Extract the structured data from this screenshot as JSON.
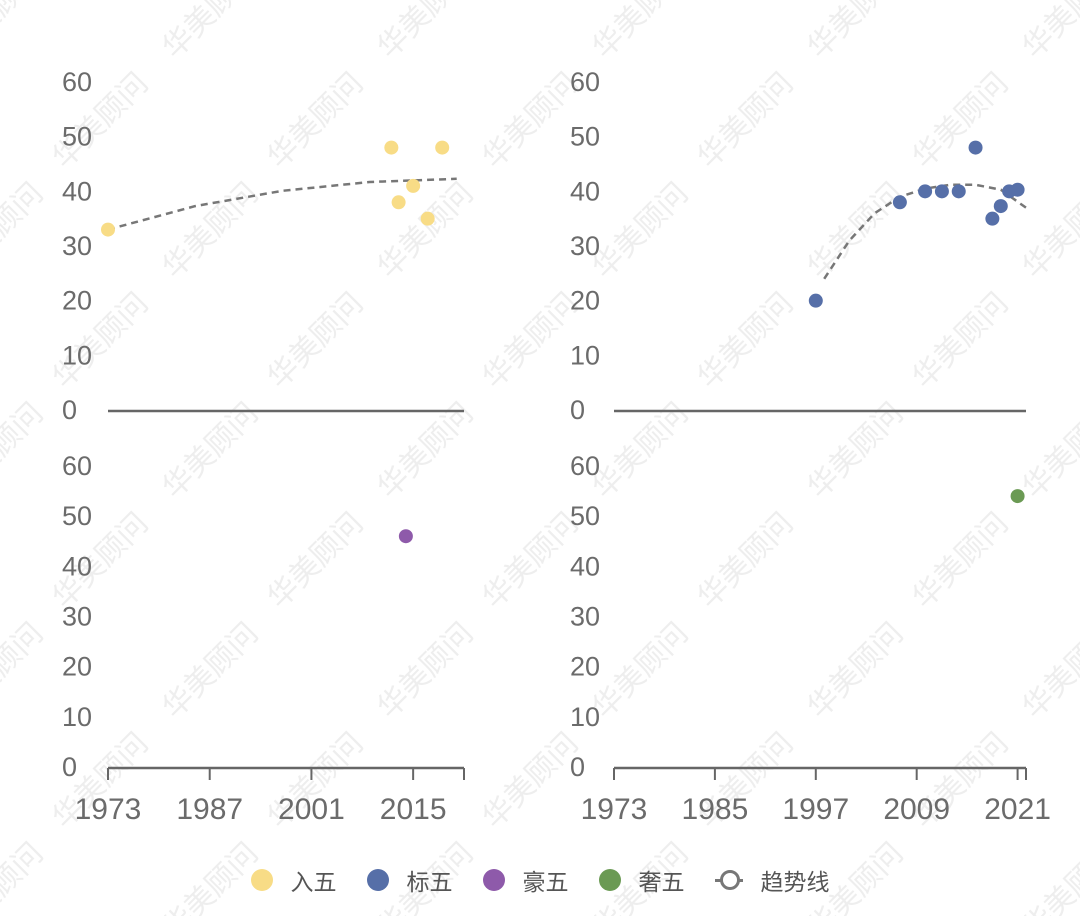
{
  "watermark": "华美顾问",
  "legend": [
    {
      "label": "入五",
      "color": "#f8dc86",
      "kind": "dot"
    },
    {
      "label": "标五",
      "color": "#566fa8",
      "kind": "dot"
    },
    {
      "label": "豪五",
      "color": "#8e5aaa",
      "kind": "dot"
    },
    {
      "label": "奢五",
      "color": "#6b9a54",
      "kind": "dot"
    },
    {
      "label": "趋势线",
      "color": "#777777",
      "kind": "trend"
    }
  ],
  "chart_data": [
    {
      "type": "scatter",
      "panel": "top-left",
      "series_name": "入五",
      "color": "#f8dc86",
      "x_range": [
        1973,
        2022
      ],
      "ylim": [
        0,
        60
      ],
      "y_ticks": [
        0,
        10,
        20,
        30,
        40,
        50,
        60
      ],
      "points": [
        [
          1973,
          33
        ],
        [
          2012,
          48
        ],
        [
          2013,
          38
        ],
        [
          2015,
          41
        ],
        [
          2017,
          35
        ],
        [
          2019,
          48
        ]
      ],
      "trendline": [
        [
          1973,
          33
        ],
        [
          1985,
          37.3
        ],
        [
          1997,
          40.1
        ],
        [
          2009,
          41.7
        ],
        [
          2021,
          42.3
        ]
      ]
    },
    {
      "type": "scatter",
      "panel": "top-right",
      "series_name": "标五",
      "color": "#566fa8",
      "x_range": [
        1973,
        2022
      ],
      "ylim": [
        0,
        60
      ],
      "y_ticks": [
        0,
        10,
        20,
        30,
        40,
        50,
        60
      ],
      "points": [
        [
          1997,
          20
        ],
        [
          2007,
          38
        ],
        [
          2010,
          40
        ],
        [
          2012,
          40
        ],
        [
          2014,
          40
        ],
        [
          2016,
          48
        ],
        [
          2018,
          35
        ],
        [
          2019,
          37.3
        ],
        [
          2020,
          40
        ],
        [
          2021,
          40.3
        ]
      ],
      "trendline": [
        [
          1998,
          24
        ],
        [
          2001,
          31
        ],
        [
          2004,
          36
        ],
        [
          2007,
          39
        ],
        [
          2010,
          40.5
        ],
        [
          2013,
          41.2
        ],
        [
          2016,
          41.2
        ],
        [
          2019,
          40.3
        ],
        [
          2022,
          37
        ]
      ]
    },
    {
      "type": "scatter",
      "panel": "bottom-left",
      "series_name": "豪五",
      "color": "#8e5aaa",
      "x_range": [
        1973,
        2022
      ],
      "x_ticks": [
        1973,
        1987,
        2001,
        2015
      ],
      "ylim": [
        0,
        60
      ],
      "y_ticks": [
        0,
        10,
        20,
        30,
        40,
        50,
        60
      ],
      "points": [
        [
          2014,
          46
        ]
      ]
    },
    {
      "type": "scatter",
      "panel": "bottom-right",
      "series_name": "奢五",
      "color": "#6b9a54",
      "x_range": [
        1973,
        2022
      ],
      "x_ticks": [
        1973,
        1985,
        1997,
        2009,
        2021
      ],
      "ylim": [
        0,
        60
      ],
      "y_ticks": [
        0,
        10,
        20,
        30,
        40,
        50,
        60
      ],
      "points": [
        [
          2021,
          54
        ]
      ]
    }
  ]
}
